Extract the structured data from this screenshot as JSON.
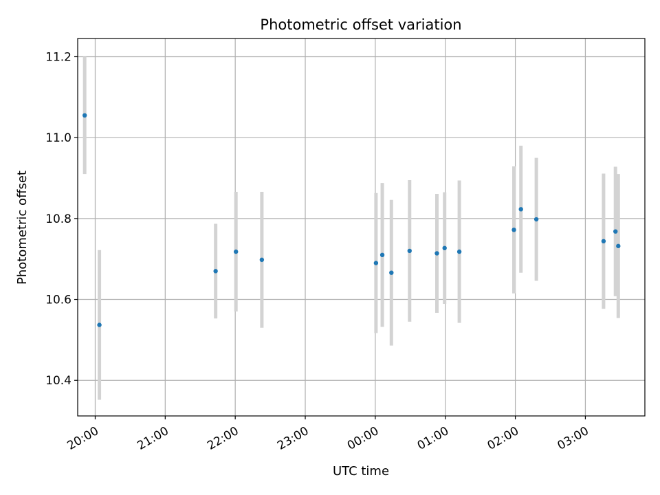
{
  "chart_data": {
    "type": "scatter",
    "title": "Photometric offset variation",
    "xlabel": "UTC time",
    "ylabel": "Photometric offset",
    "grid": true,
    "xlim": [
      -4.25,
      3.85
    ],
    "ylim": [
      10.312,
      11.245
    ],
    "x_ticks": [
      {
        "value": -4,
        "label": "20:00"
      },
      {
        "value": -3,
        "label": "21:00"
      },
      {
        "value": -2,
        "label": "22:00"
      },
      {
        "value": -1,
        "label": "23:00"
      },
      {
        "value": 0,
        "label": "00:00"
      },
      {
        "value": 1,
        "label": "01:00"
      },
      {
        "value": 2,
        "label": "02:00"
      },
      {
        "value": 3,
        "label": "03:00"
      }
    ],
    "y_ticks": [
      {
        "value": 10.4,
        "label": "10.4"
      },
      {
        "value": 10.6,
        "label": "10.6"
      },
      {
        "value": 10.8,
        "label": "10.8"
      },
      {
        "value": 11.0,
        "label": "11.0"
      },
      {
        "value": 11.2,
        "label": "11.2"
      }
    ],
    "marker_color": "#1f77b4",
    "errorbar_color": "#d3d3d3",
    "points": [
      {
        "time": "19:51",
        "x": -4.15,
        "y": 11.055,
        "err": 0.145
      },
      {
        "time": "20:04",
        "x": -3.94,
        "y": 10.537,
        "err": 0.185
      },
      {
        "time": "21:44",
        "x": -2.28,
        "y": 10.67,
        "err": 0.117
      },
      {
        "time": "22:01",
        "x": -1.99,
        "y": 10.718,
        "err": 0.148
      },
      {
        "time": "22:23",
        "x": -1.62,
        "y": 10.698,
        "err": 0.168
      },
      {
        "time": "00:00",
        "x": 0.01,
        "y": 10.69,
        "err": 0.173
      },
      {
        "time": "00:06",
        "x": 0.1,
        "y": 10.71,
        "err": 0.178
      },
      {
        "time": "00:14",
        "x": 0.23,
        "y": 10.666,
        "err": 0.18
      },
      {
        "time": "00:30",
        "x": 0.49,
        "y": 10.72,
        "err": 0.175
      },
      {
        "time": "00:53",
        "x": 0.88,
        "y": 10.714,
        "err": 0.147
      },
      {
        "time": "00:59",
        "x": 0.99,
        "y": 10.727,
        "err": 0.138
      },
      {
        "time": "01:12",
        "x": 1.2,
        "y": 10.718,
        "err": 0.176
      },
      {
        "time": "01:59",
        "x": 1.98,
        "y": 10.772,
        "err": 0.157
      },
      {
        "time": "02:05",
        "x": 2.08,
        "y": 10.823,
        "err": 0.157
      },
      {
        "time": "02:18",
        "x": 2.3,
        "y": 10.798,
        "err": 0.152
      },
      {
        "time": "03:16",
        "x": 3.26,
        "y": 10.744,
        "err": 0.167
      },
      {
        "time": "03:26",
        "x": 3.43,
        "y": 10.768,
        "err": 0.16
      },
      {
        "time": "03:28",
        "x": 3.47,
        "y": 10.732,
        "err": 0.178
      }
    ]
  }
}
